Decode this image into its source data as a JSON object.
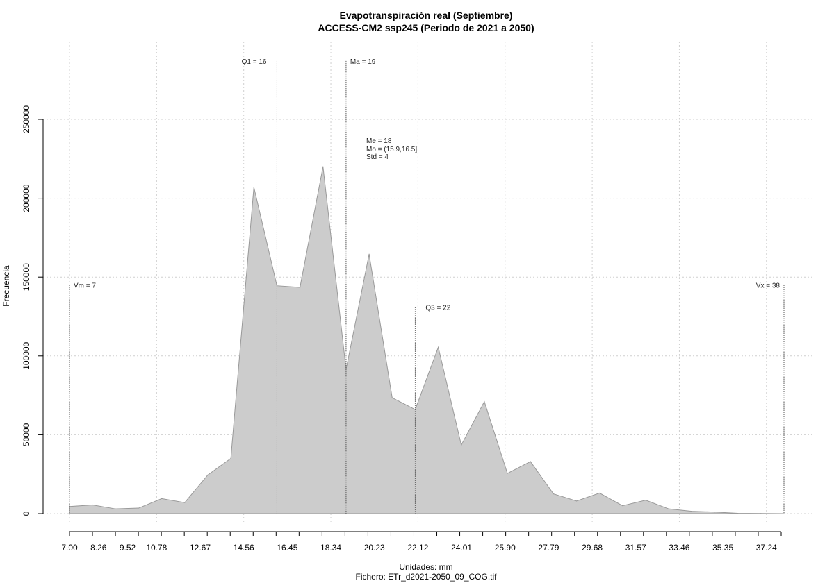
{
  "chart_data": {
    "type": "area",
    "title": "Evapotranspiración real (Septiembre)",
    "subtitle": "ACCESS-CM2 ssp245 (Periodo de 2021 a 2050)",
    "xlabel": "Unidades: mm",
    "ylabel": "Frecuencia",
    "footer": "Fichero: ETr_d2021-2050_09_COG.tif",
    "xlim": [
      7.0,
      38.0
    ],
    "ylim": [
      0,
      250000
    ],
    "x_tick_labels": [
      "7.00",
      "8.26",
      "9.52",
      "10.78",
      "12.67",
      "14.56",
      "16.45",
      "18.34",
      "20.23",
      "22.12",
      "24.01",
      "25.90",
      "27.79",
      "29.68",
      "31.57",
      "33.46",
      "35.35",
      "37.24"
    ],
    "y_tick_labels": [
      "0",
      "50000",
      "100000",
      "150000",
      "200000",
      "250000"
    ],
    "grid": true,
    "fill_color": "#cccccc",
    "line_color": "#999999",
    "x": [
      7.0,
      8.0,
      9.0,
      10.0,
      11.0,
      12.0,
      13.0,
      14.0,
      15.0,
      16.0,
      17.0,
      18.0,
      19.0,
      20.0,
      21.0,
      22.0,
      23.0,
      24.0,
      25.0,
      26.0,
      27.0,
      28.0,
      29.0,
      30.0,
      31.0,
      32.0,
      33.0,
      34.0,
      35.0,
      36.0,
      37.0,
      38.0
    ],
    "y": [
      4500,
      5500,
      3000,
      3500,
      9500,
      7000,
      24500,
      35000,
      207000,
      144500,
      143500,
      220000,
      91500,
      164500,
      73500,
      66000,
      105500,
      43500,
      71000,
      25500,
      33000,
      12500,
      8000,
      13000,
      5000,
      8500,
      3000,
      1500,
      1000,
      200,
      100,
      0
    ],
    "annotations": [
      {
        "label": "Vm = 7",
        "x": 7.0,
        "y": 145000
      },
      {
        "label": "Q1 = 16",
        "x": 16.0,
        "y": 287000
      },
      {
        "label": "Ma = 19",
        "x": 19.0,
        "y": 287000
      },
      {
        "label": "Q3 = 22",
        "x": 22.0,
        "y": 131000
      },
      {
        "label": "Vx = 38",
        "x": 38.0,
        "y": 145000
      }
    ],
    "stats": [
      "Me = 18",
      "Mo = (15.9,16.5]",
      "Std = 4"
    ]
  }
}
